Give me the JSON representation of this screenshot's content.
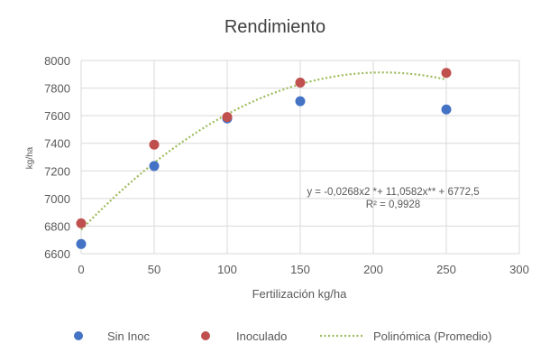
{
  "chart_data": {
    "type": "scatter",
    "title": "Rendimiento",
    "xlabel": "Fertilización  kg/ha",
    "ylabel": "kg/ha",
    "xlim": [
      0,
      300
    ],
    "ylim": [
      6600,
      8000
    ],
    "xticks": [
      0,
      50,
      100,
      150,
      200,
      250,
      300
    ],
    "yticks": [
      6600,
      6800,
      7000,
      7200,
      7400,
      7600,
      7800,
      8000
    ],
    "grid": true,
    "legend_position": "bottom",
    "series": [
      {
        "name": "Sin Inoc",
        "color": "#4472C4",
        "x": [
          0,
          50,
          100,
          150,
          250
        ],
        "y": [
          6670,
          7235,
          7580,
          7705,
          7645
        ]
      },
      {
        "name": "Inoculado",
        "color": "#C0504D",
        "x": [
          0,
          50,
          100,
          150,
          250
        ],
        "y": [
          6820,
          7390,
          7590,
          7840,
          7910
        ]
      }
    ],
    "trendline": {
      "name": "Polinómica (Promedio)",
      "color": "#9BBB59",
      "style": "dotted",
      "coefficients": [
        -0.0268,
        11.0582,
        6772.5
      ],
      "x_range": [
        0,
        250
      ],
      "equation": "y = -0,0268x2 *+ 11,0582x** + 6772,5",
      "r2": "R² = 0,9928"
    }
  }
}
